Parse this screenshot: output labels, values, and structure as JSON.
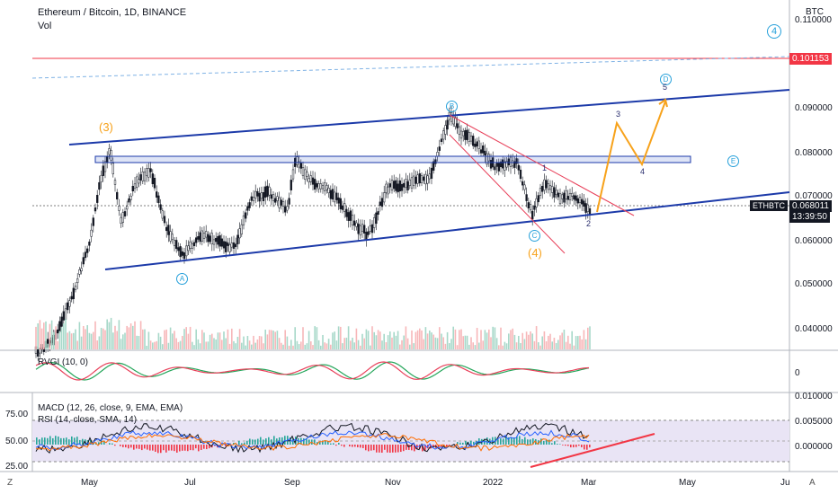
{
  "header": {
    "symbol_title": "Ethereum / Bitcoin, 1D, BINANCE",
    "volume_label": "Vol"
  },
  "price_axis": {
    "currency": "BTC",
    "ticks": [
      "0.110000",
      "0.100000",
      "0.090000",
      "0.080000",
      "0.070000",
      "0.060000",
      "0.050000",
      "0.040000"
    ],
    "resistance_tag": "0.101153",
    "symbol_tag": "ETHBTC",
    "last_price_tag": "0.068011",
    "countdown": "13:39:50"
  },
  "time_axis": {
    "ticks": [
      "May",
      "Jul",
      "Sep",
      "Nov",
      "2022",
      "Mar",
      "May",
      "Ju"
    ]
  },
  "annotations": {
    "wave_3_main": "(3)",
    "wave_4_main": "(4)",
    "wave_4_circle": "4",
    "point_A": "A",
    "point_B": "B",
    "point_C": "C",
    "point_D": "D",
    "point_E": "E",
    "sub_1": "1",
    "sub_2": "2",
    "sub_3": "3",
    "sub_4": "4",
    "sub_5": "5"
  },
  "rvgi_pane": {
    "title": "RVGI (10, 0)",
    "axis_value": "0"
  },
  "macd_rsi_pane": {
    "macd_title": "MACD (12, 26, close, 9, EMA, EMA)",
    "rsi_title": "RSI (14, close, SMA, 14)",
    "left_ticks": [
      "75.00",
      "50.00",
      "25.00"
    ],
    "right_ticks": [
      "0.010000",
      "0.005000",
      "0.000000"
    ]
  },
  "corner": {
    "left": "Z",
    "right": "A"
  },
  "colors": {
    "trendline": "#1c3aa9",
    "resistance": "#f23645",
    "orange": "#f7a21b",
    "circle_label": "#26a0da",
    "candle_body": "#131722"
  }
}
